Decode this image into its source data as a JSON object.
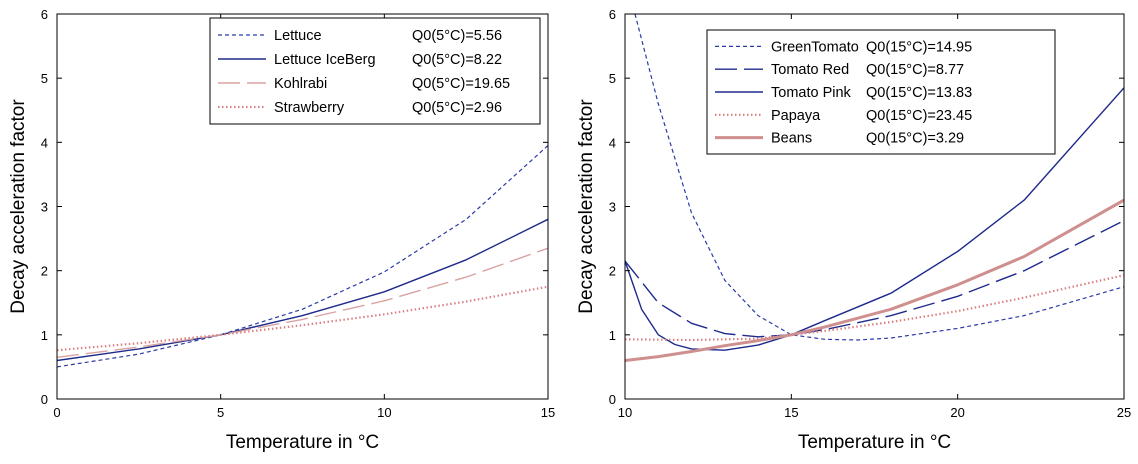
{
  "chart_data": [
    {
      "type": "line",
      "xlabel": "Temperature in °C",
      "ylabel": "Decay acceleration factor",
      "xlim": [
        0,
        15
      ],
      "ylim": [
        0,
        6
      ],
      "xticks": [
        0,
        5,
        10,
        15
      ],
      "yticks": [
        0,
        1,
        2,
        3,
        4,
        5,
        6
      ],
      "grid": false,
      "legend_position": "top-right",
      "series": [
        {
          "name": "Lettuce",
          "q0": "Q0(5°C)=5.56",
          "color": "#2b3aa6",
          "style": "dashed-fine",
          "x": [
            0,
            2.5,
            5,
            7.5,
            10,
            12.5,
            15
          ],
          "y": [
            0.5,
            0.7,
            1.0,
            1.4,
            1.98,
            2.8,
            3.95
          ]
        },
        {
          "name": "Lettuce IceBerg",
          "q0": "Q0(5°C)=8.22",
          "color": "#1e2a8c",
          "style": "solid",
          "x": [
            0,
            2.5,
            5,
            7.5,
            10,
            12.5,
            15
          ],
          "y": [
            0.6,
            0.78,
            1.0,
            1.3,
            1.67,
            2.17,
            2.8
          ]
        },
        {
          "name": "Kohlrabi",
          "q0": "Q0(5°C)=19.65",
          "color": "#d9a3a3",
          "style": "long-dash",
          "x": [
            0,
            2.5,
            5,
            7.5,
            10,
            12.5,
            15
          ],
          "y": [
            0.65,
            0.81,
            1.0,
            1.24,
            1.53,
            1.9,
            2.35
          ]
        },
        {
          "name": "Strawberry",
          "q0": "Q0(5°C)=2.96",
          "color": "#d98080",
          "style": "dotted",
          "x": [
            0,
            2.5,
            5,
            7.5,
            10,
            12.5,
            15
          ],
          "y": [
            0.76,
            0.87,
            1.0,
            1.15,
            1.32,
            1.52,
            1.75
          ]
        }
      ]
    },
    {
      "type": "line",
      "xlabel": "Temperature in °C",
      "ylabel": "Decay acceleration factor",
      "xlim": [
        10,
        25
      ],
      "ylim": [
        0,
        6
      ],
      "xticks": [
        10,
        15,
        20,
        25
      ],
      "yticks": [
        0,
        1,
        2,
        3,
        4,
        5,
        6
      ],
      "grid": false,
      "legend_position": "top-right",
      "series": [
        {
          "name": "GreenTomato",
          "q0": "Q0(15°C)=14.95",
          "color": "#2b3aa6",
          "style": "dashed-fine",
          "x": [
            10.3,
            11,
            12,
            13,
            14,
            15,
            16,
            17,
            18,
            20,
            22,
            25
          ],
          "y": [
            6.0,
            4.6,
            2.9,
            1.85,
            1.3,
            1.0,
            0.93,
            0.92,
            0.95,
            1.1,
            1.3,
            1.75
          ]
        },
        {
          "name": "Tomato Red",
          "q0": "Q0(15°C)=8.77",
          "color": "#1e2a8c",
          "style": "long-dash",
          "x": [
            10,
            11,
            12,
            13,
            14,
            15,
            16,
            18,
            20,
            22,
            25
          ],
          "y": [
            2.15,
            1.5,
            1.18,
            1.02,
            0.97,
            1.0,
            1.08,
            1.3,
            1.6,
            2.0,
            2.78
          ]
        },
        {
          "name": "Tomato Pink",
          "q0": "Q0(15°C)=13.83",
          "color": "#1e2a8c",
          "style": "solid",
          "x": [
            10,
            10.5,
            11,
            11.5,
            12,
            13,
            14,
            15,
            16,
            18,
            20,
            22,
            25
          ],
          "y": [
            2.15,
            1.4,
            1.0,
            0.85,
            0.78,
            0.76,
            0.84,
            1.0,
            1.22,
            1.65,
            2.3,
            3.1,
            4.85
          ]
        },
        {
          "name": "Papaya",
          "q0": "Q0(15°C)=23.45",
          "color": "#d98080",
          "style": "dotted",
          "x": [
            10,
            12,
            14,
            15,
            16,
            18,
            20,
            22,
            25
          ],
          "y": [
            0.93,
            0.92,
            0.94,
            1.0,
            1.06,
            1.2,
            1.37,
            1.58,
            1.93
          ]
        },
        {
          "name": "Beans",
          "q0": "Q0(15°C)=3.29",
          "color": "#cf8f8f",
          "style": "solid-thick",
          "x": [
            10,
            11,
            12,
            13,
            14,
            15,
            16,
            18,
            20,
            22,
            25
          ],
          "y": [
            0.6,
            0.66,
            0.74,
            0.83,
            0.91,
            1.0,
            1.12,
            1.4,
            1.78,
            2.22,
            3.1
          ]
        }
      ]
    }
  ]
}
